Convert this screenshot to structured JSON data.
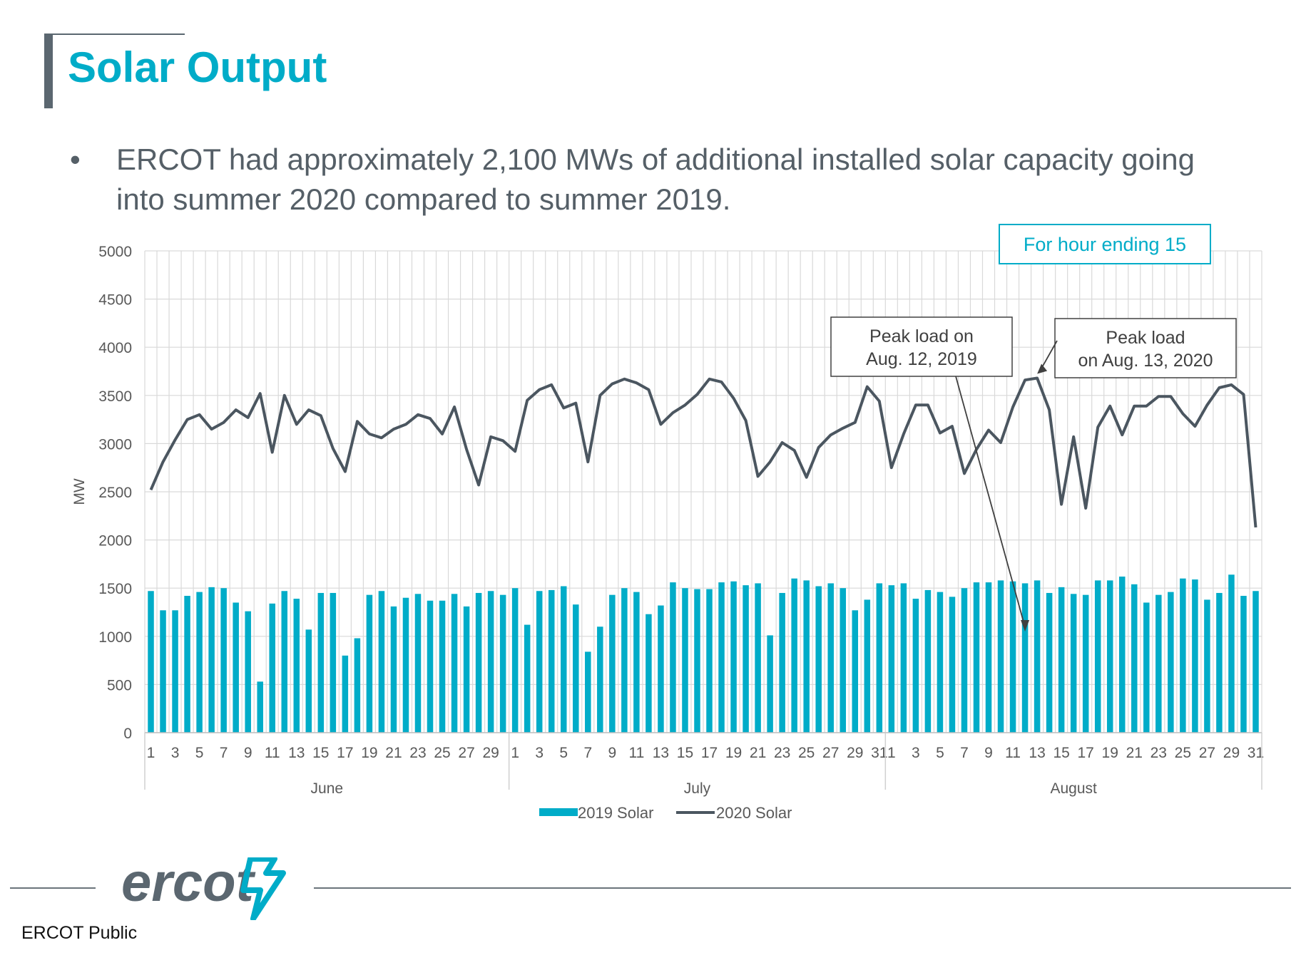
{
  "slide": {
    "title": "Solar Output",
    "bullet": "ERCOT had approximately 2,100 MWs of additional installed solar capacity going into summer 2020 compared to summer 2019.",
    "footer_label": "ERCOT Public",
    "logo_text": "ercot"
  },
  "colors": {
    "accent": "#00acc8",
    "line": "#4b5660",
    "bar": "#00acc8",
    "text": "#555f67"
  },
  "icons": {
    "logo_mark": "ercot-lightning-icon"
  },
  "chart_data": {
    "type": "bar",
    "ylabel": "MW",
    "ylim": [
      0,
      5000
    ],
    "yticks": [
      0,
      500,
      1000,
      1500,
      2000,
      2500,
      3000,
      3500,
      4000,
      4500,
      5000
    ],
    "month_groups": [
      {
        "name": "June",
        "days": 30
      },
      {
        "name": "July",
        "days": 31
      },
      {
        "name": "August",
        "days": 31
      }
    ],
    "series": [
      {
        "name": "2019 Solar",
        "type": "bar",
        "values": [
          1470,
          1270,
          1270,
          1420,
          1460,
          1510,
          1500,
          1350,
          1260,
          530,
          1340,
          1470,
          1390,
          1070,
          1450,
          1450,
          800,
          980,
          1430,
          1470,
          1310,
          1400,
          1440,
          1370,
          1370,
          1440,
          1310,
          1450,
          1470,
          1430,
          1500,
          1120,
          1470,
          1480,
          1520,
          1330,
          840,
          1100,
          1430,
          1500,
          1460,
          1230,
          1320,
          1560,
          1500,
          1490,
          1490,
          1560,
          1570,
          1530,
          1550,
          1010,
          1450,
          1600,
          1580,
          1520,
          1550,
          1500,
          1270,
          1380,
          1550,
          1530,
          1550,
          1390,
          1480,
          1460,
          1410,
          1500,
          1560,
          1560,
          1580,
          1570,
          1550,
          1580,
          1450,
          1510,
          1440,
          1430,
          1580,
          1580,
          1620,
          1540,
          1350,
          1430,
          1460,
          1600,
          1590,
          1380,
          1450,
          1640,
          1420,
          1470
        ]
      },
      {
        "name": "2020 Solar",
        "type": "line",
        "values": [
          2520,
          2810,
          3040,
          3250,
          3300,
          3150,
          3220,
          3350,
          3270,
          3520,
          2910,
          3500,
          3200,
          3350,
          3290,
          2950,
          2710,
          3230,
          3100,
          3060,
          3150,
          3200,
          3300,
          3260,
          3100,
          3380,
          2940,
          2570,
          3070,
          3030,
          2920,
          3450,
          3560,
          3610,
          3370,
          3420,
          2810,
          3500,
          3620,
          3670,
          3630,
          3560,
          3200,
          3320,
          3400,
          3510,
          3670,
          3640,
          3470,
          3240,
          2660,
          2810,
          3010,
          2930,
          2650,
          2960,
          3090,
          3160,
          3220,
          3590,
          3440,
          2750,
          3100,
          3400,
          3400,
          3110,
          3180,
          2690,
          2940,
          3140,
          3010,
          3380,
          3660,
          3680,
          3350,
          2370,
          3070,
          2330,
          3170,
          3390,
          3090,
          3390,
          3390,
          3490,
          3490,
          3310,
          3180,
          3400,
          3580,
          3610,
          3510,
          2130
        ]
      }
    ],
    "annotations": [
      {
        "text": "For hour ending 15"
      },
      {
        "text_lines": [
          "Peak load on",
          "Aug. 12, 2019"
        ],
        "points_to": {
          "series": "2019 Solar",
          "month": "August",
          "day": 12
        }
      },
      {
        "text_lines": [
          "Peak load",
          "on Aug. 13, 2020"
        ],
        "points_to": {
          "series": "2020 Solar",
          "month": "August",
          "day": 13
        }
      }
    ],
    "legend_position": "bottom",
    "grid": true
  }
}
